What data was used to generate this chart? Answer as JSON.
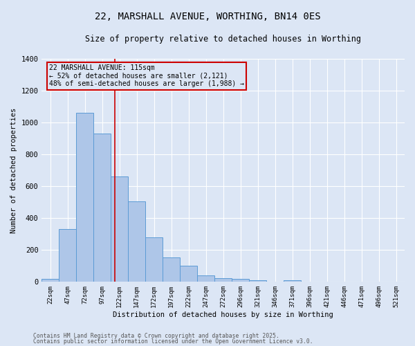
{
  "title": "22, MARSHALL AVENUE, WORTHING, BN14 0ES",
  "subtitle": "Size of property relative to detached houses in Worthing",
  "xlabel": "Distribution of detached houses by size in Worthing",
  "ylabel": "Number of detached properties",
  "categories": [
    "22sqm",
    "47sqm",
    "72sqm",
    "97sqm",
    "122sqm",
    "147sqm",
    "172sqm",
    "197sqm",
    "222sqm",
    "247sqm",
    "272sqm",
    "296sqm",
    "321sqm",
    "346sqm",
    "371sqm",
    "396sqm",
    "421sqm",
    "446sqm",
    "471sqm",
    "496sqm",
    "521sqm"
  ],
  "values": [
    20,
    330,
    1060,
    930,
    660,
    505,
    280,
    155,
    100,
    42,
    25,
    20,
    10,
    0,
    8,
    0,
    0,
    0,
    0,
    0,
    0
  ],
  "bar_color": "#aec6e8",
  "bar_edge_color": "#5b9bd5",
  "background_color": "#dce6f5",
  "grid_color": "#ffffff",
  "vline_color": "#cc0000",
  "vline_x": 3.72,
  "annotation_text": "22 MARSHALL AVENUE: 115sqm\n← 52% of detached houses are smaller (2,121)\n48% of semi-detached houses are larger (1,988) →",
  "annotation_box_color": "#cc0000",
  "footnote1": "Contains HM Land Registry data © Crown copyright and database right 2025.",
  "footnote2": "Contains public sector information licensed under the Open Government Licence v3.0.",
  "ylim": [
    0,
    1400
  ],
  "yticks": [
    0,
    200,
    400,
    600,
    800,
    1000,
    1200,
    1400
  ]
}
